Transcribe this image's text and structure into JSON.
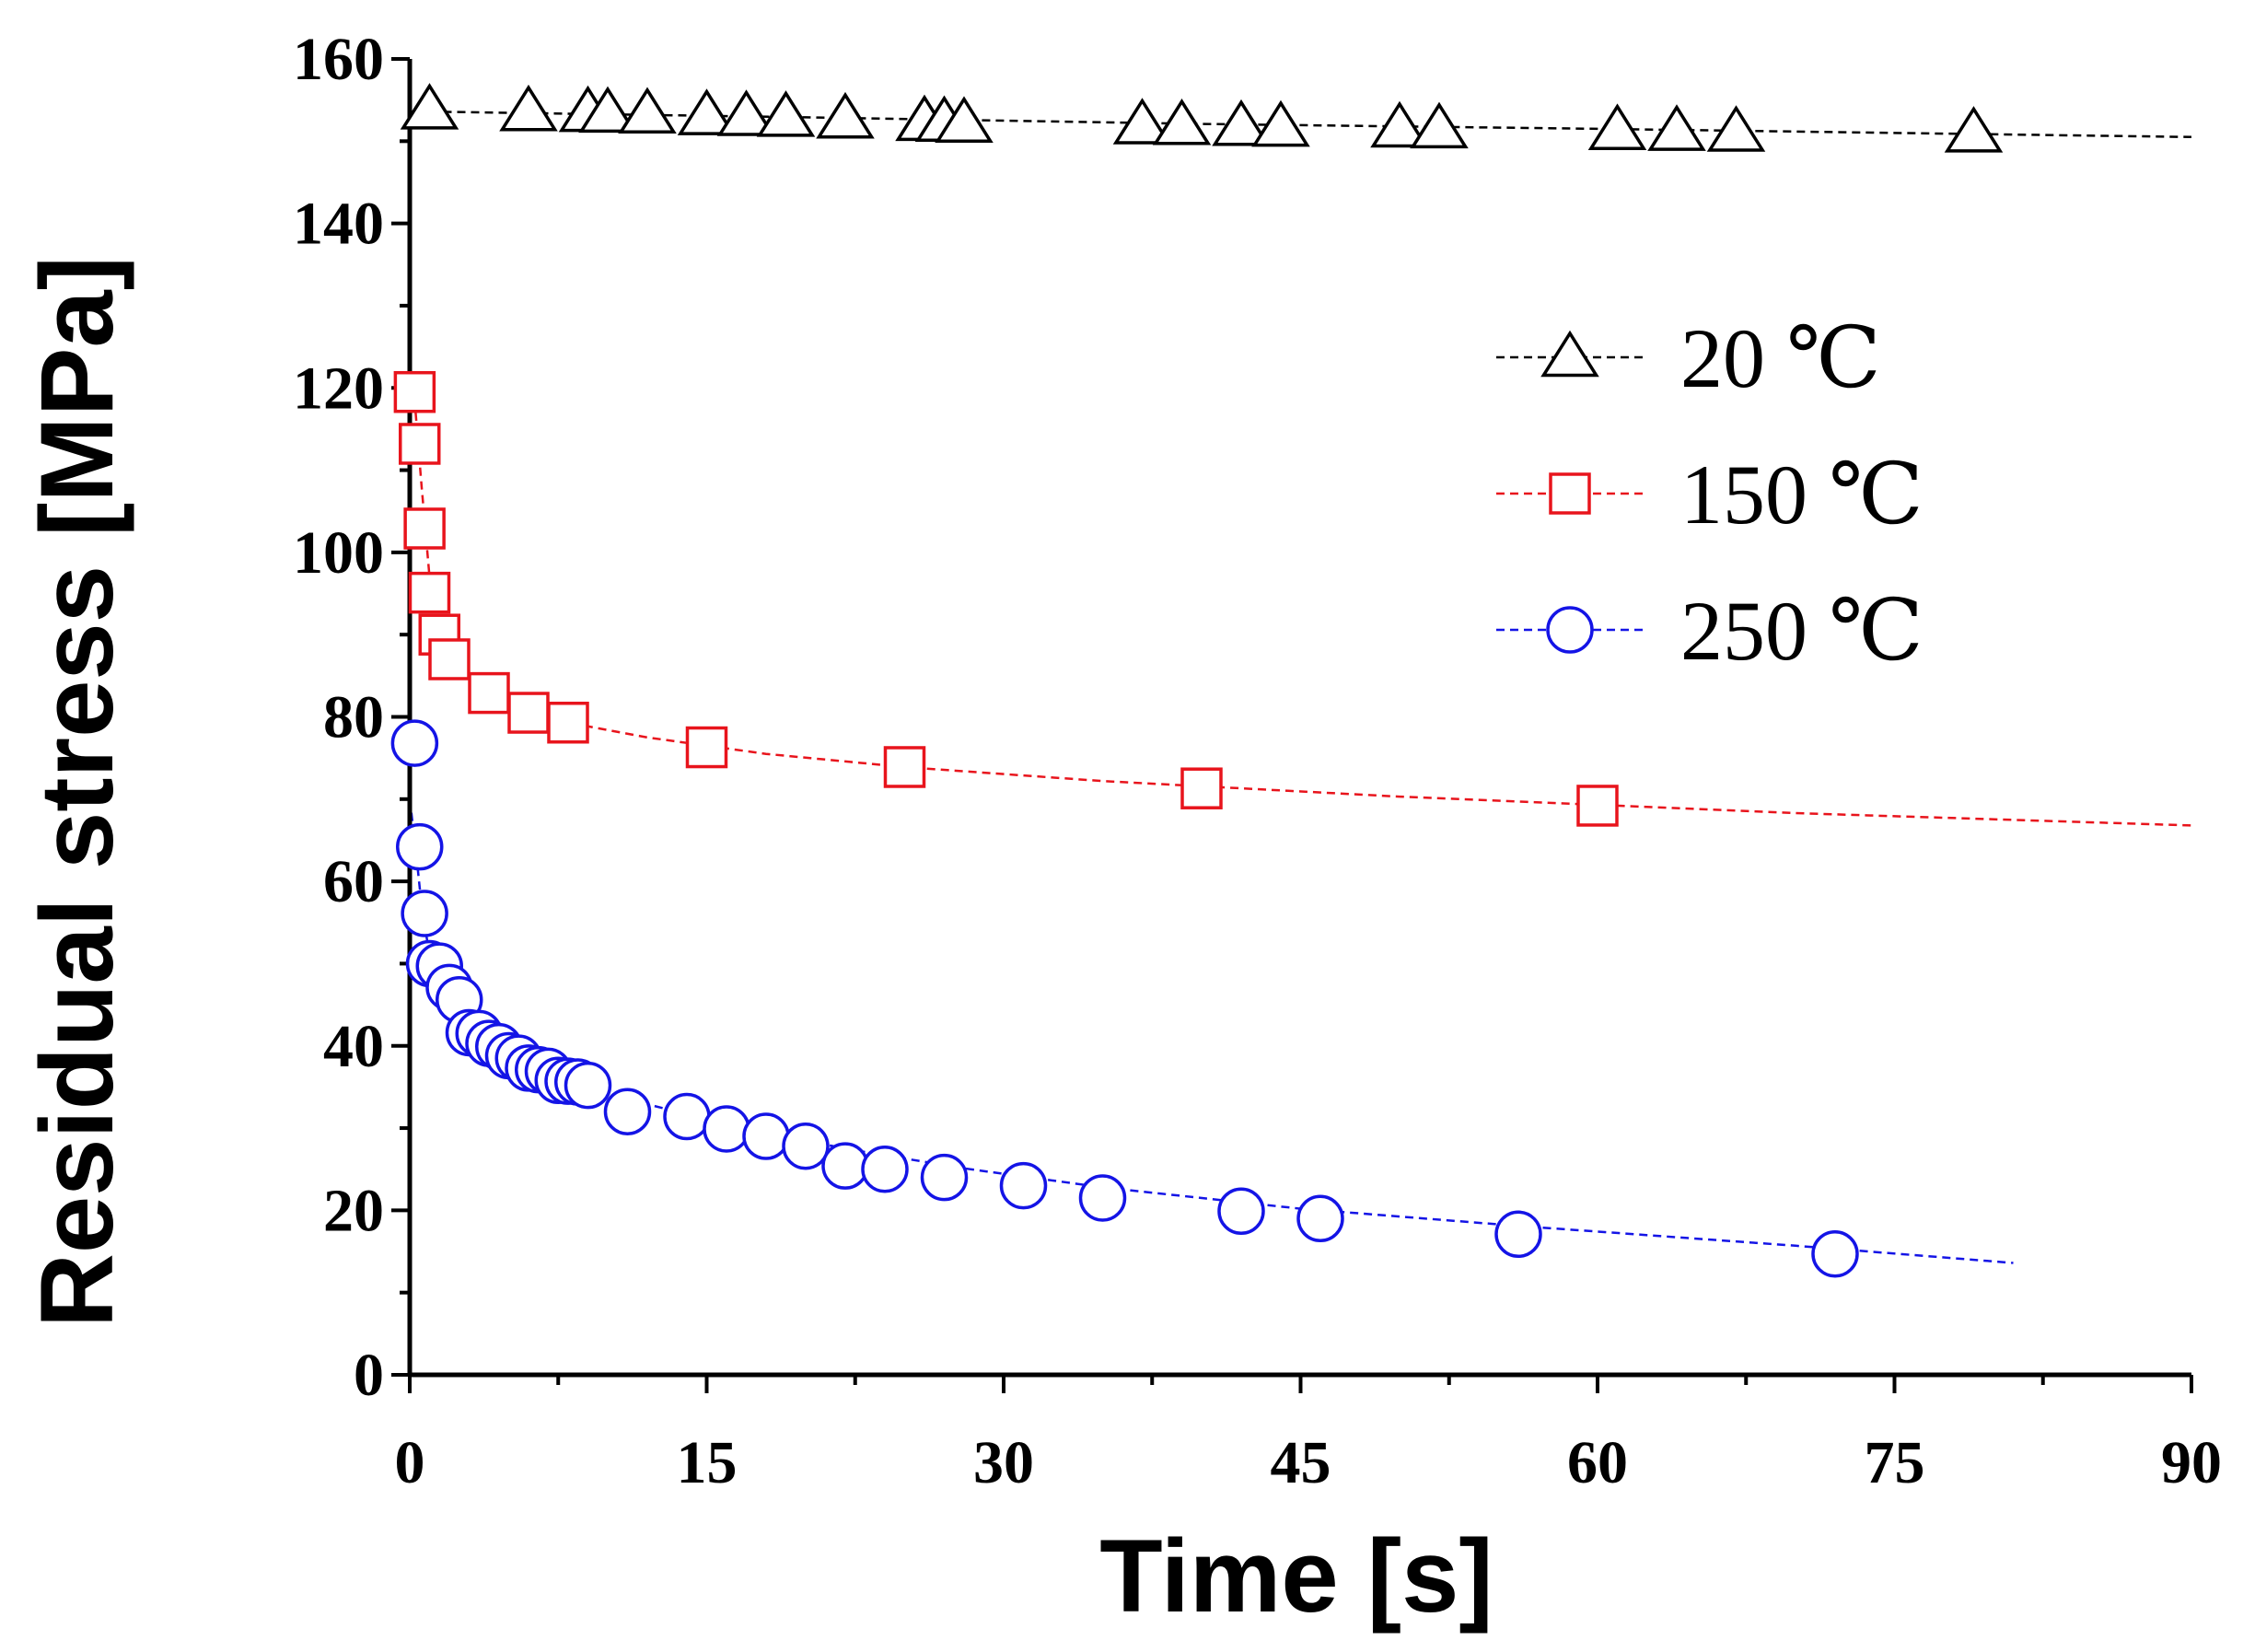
{
  "chart_data": {
    "type": "scatter",
    "xlabel": "Time [s]",
    "ylabel": "Residual stress [MPa]",
    "xlim": [
      0,
      90
    ],
    "ylim": [
      0,
      160
    ],
    "xticks": [
      0,
      15,
      30,
      45,
      60,
      75,
      90
    ],
    "yticks": [
      0,
      20,
      40,
      60,
      80,
      100,
      120,
      140,
      160
    ],
    "grid": false,
    "legend_placement": "right",
    "series": [
      {
        "name": "20 ℃",
        "marker": "triangle",
        "color": "#000000",
        "x": [
          1,
          6,
          9,
          10,
          12,
          15,
          17,
          19,
          22,
          26,
          27,
          28,
          37,
          39,
          42,
          44,
          50,
          52,
          61,
          64,
          67,
          79
        ],
        "y": [
          153.8,
          153.6,
          153.5,
          153.4,
          153.3,
          153.1,
          153.0,
          152.9,
          152.7,
          152.4,
          152.3,
          152.2,
          152.0,
          151.9,
          151.8,
          151.7,
          151.6,
          151.5,
          151.3,
          151.2,
          151.1,
          151.0
        ],
        "fit": {
          "x": [
            1,
            20,
            40,
            60,
            90
          ],
          "y": [
            153.6,
            152.9,
            152.1,
            151.5,
            150.5
          ]
        }
      },
      {
        "name": "150 ℃",
        "marker": "square",
        "color": "#e8141c",
        "x": [
          0.25,
          0.5,
          0.75,
          1.0,
          1.5,
          2.0,
          4.0,
          6.0,
          8.0,
          15,
          25,
          40,
          60
        ],
        "y": [
          119.5,
          113.2,
          102.9,
          95.1,
          90.0,
          87.0,
          82.9,
          80.5,
          79.3,
          76.3,
          73.9,
          71.3,
          69.2
        ],
        "fit": {
          "x": [
            0,
            0.3,
            0.6,
            1.0,
            1.5,
            2.5,
            4,
            6,
            8,
            12,
            18,
            25,
            35,
            50,
            70,
            90
          ],
          "y": [
            122,
            117,
            108,
            97,
            91,
            86.5,
            83,
            80.8,
            79.3,
            77.5,
            75.5,
            73.9,
            72.2,
            70.3,
            68.3,
            66.8
          ]
        }
      },
      {
        "name": "250 ℃",
        "marker": "circle",
        "color": "#1414e6",
        "x": [
          0.25,
          0.5,
          0.75,
          1.0,
          1.5,
          2.0,
          2.5,
          3.0,
          3.5,
          4.0,
          4.5,
          5.0,
          5.5,
          6.0,
          6.5,
          7.0,
          7.5,
          8.0,
          8.5,
          9.0,
          11,
          14,
          16,
          18,
          20,
          22,
          24,
          27,
          31,
          35,
          42,
          46,
          56,
          72
        ],
        "y": [
          76.8,
          64.2,
          56.1,
          50.0,
          49.7,
          47.1,
          45.6,
          41.6,
          41.5,
          40.3,
          39.9,
          38.8,
          38.5,
          37.3,
          37.1,
          36.9,
          35.8,
          35.7,
          35.6,
          35.2,
          32.0,
          31.4,
          29.9,
          29.0,
          27.8,
          25.4,
          25.0,
          24.0,
          23.0,
          21.5,
          19.9,
          19.0,
          17.1,
          14.7
        ],
        "fit": {
          "x": [
            0,
            0.3,
            0.6,
            1.0,
            1.5,
            2.2,
            3,
            4,
            5,
            6.5,
            8,
            10,
            13,
            17,
            22,
            28,
            35,
            45,
            56,
            70,
            81
          ],
          "y": [
            70,
            64,
            57,
            51,
            48,
            45.5,
            43,
            40.5,
            39,
            37.3,
            36,
            34.1,
            32.3,
            30,
            27.5,
            25.1,
            22.8,
            20.2,
            18.1,
            15.7,
            13.6
          ]
        }
      }
    ]
  }
}
